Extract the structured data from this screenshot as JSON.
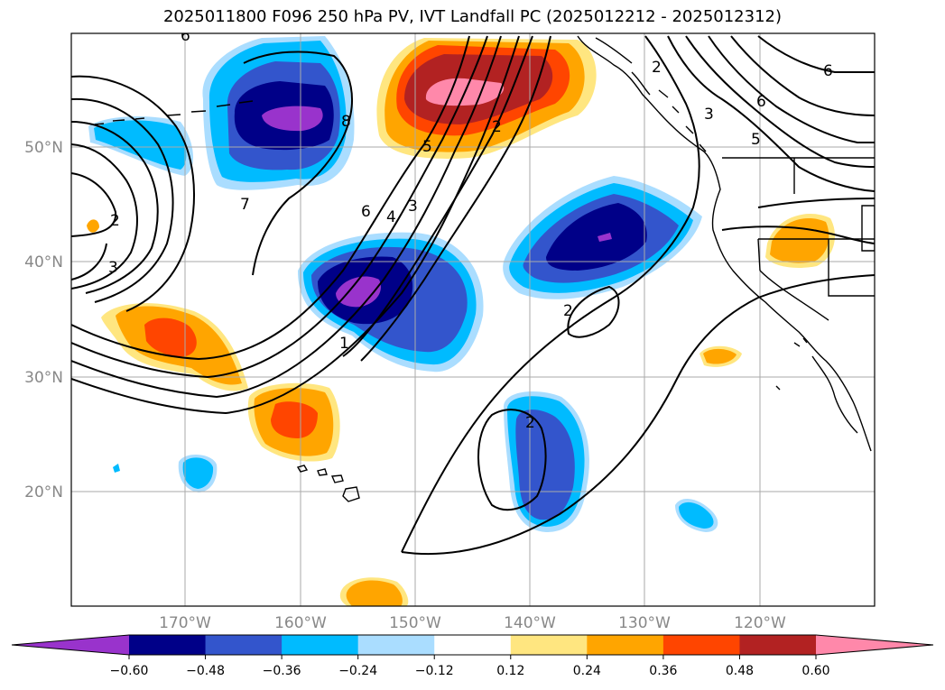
{
  "title": "2025011800 F096 250 hPa PV, IVT Landfall PC (2025012212 - 2025012312)",
  "lat_labels": [
    "50°N",
    "40°N",
    "30°N",
    "20°N"
  ],
  "lon_labels": [
    "170°W",
    "160°W",
    "150°W",
    "140°W",
    "130°W",
    "120°W"
  ],
  "colorbar": {
    "ticks": [
      "−0.60",
      "−0.48",
      "−0.36",
      "−0.24",
      "−0.12",
      "0.12",
      "0.24",
      "0.36",
      "0.48",
      "0.60"
    ],
    "colors": [
      "#9933cc",
      "#000088",
      "#3355cc",
      "#00bbff",
      "#aaddff",
      "#ffffff",
      "#ffe680",
      "#ffa500",
      "#ff4500",
      "#b22222",
      "#ff88aa"
    ]
  },
  "contour_labels": [
    "6",
    "2",
    "3",
    "7",
    "8",
    "6",
    "4",
    "3",
    "5",
    "2",
    "1",
    "2",
    "2",
    "2",
    "3",
    "5",
    "6",
    "6"
  ],
  "map": {
    "projection": "Plate Carree",
    "lon_range": [
      180,
      110
    ],
    "lat_range": [
      10,
      60
    ],
    "grid": true
  }
}
